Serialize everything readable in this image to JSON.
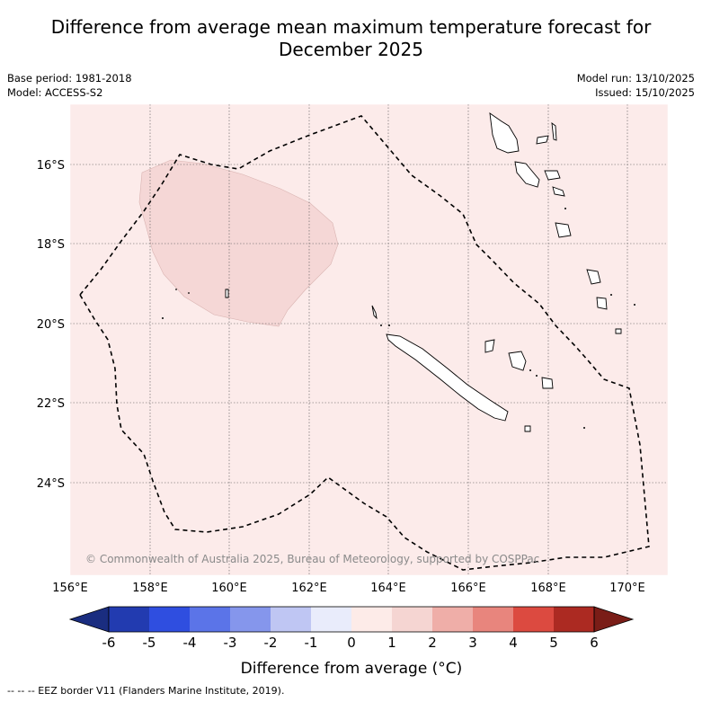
{
  "title": {
    "line1": "Difference from average mean maximum temperature forecast for",
    "line2": "December 2025"
  },
  "meta_left": {
    "base_period": "Base period: 1981-2018",
    "model": "Model: ACCESS-S2"
  },
  "meta_right": {
    "model_run": "Model run: 13/10/2025",
    "issued": "Issued: 15/10/2025"
  },
  "map": {
    "lat_labels": [
      "16°S",
      "18°S",
      "20°S",
      "22°S",
      "24°S"
    ],
    "lon_labels": [
      "156°E",
      "158°E",
      "160°E",
      "162°E",
      "164°E",
      "166°E",
      "168°E",
      "170°E"
    ],
    "copyright": "© Commonwealth of Australia 2025, Bureau of Meteorology, supported by COSPPac",
    "background_color": "#fcebea",
    "anomaly_patch_color": "#f5d7d6"
  },
  "colorbar": {
    "ticks": [
      "-6",
      "-5",
      "-4",
      "-3",
      "-2",
      "-1",
      "0",
      "1",
      "2",
      "3",
      "4",
      "5",
      "6"
    ],
    "colors": [
      "#223bb0",
      "#2f4ee0",
      "#5b74e8",
      "#8596ec",
      "#bfc6f3",
      "#e9ecfb",
      "#fdebe8",
      "#f5d5d2",
      "#efaea8",
      "#e8857d",
      "#dc4a40",
      "#ac2a22"
    ],
    "low_extend_color": "#1a2d80",
    "high_extend_color": "#7a1d17",
    "label": "Difference from average (°C)"
  },
  "footnote": "--  --  -- EEZ border V11 (Flanders Marine Institute, 2019)."
}
